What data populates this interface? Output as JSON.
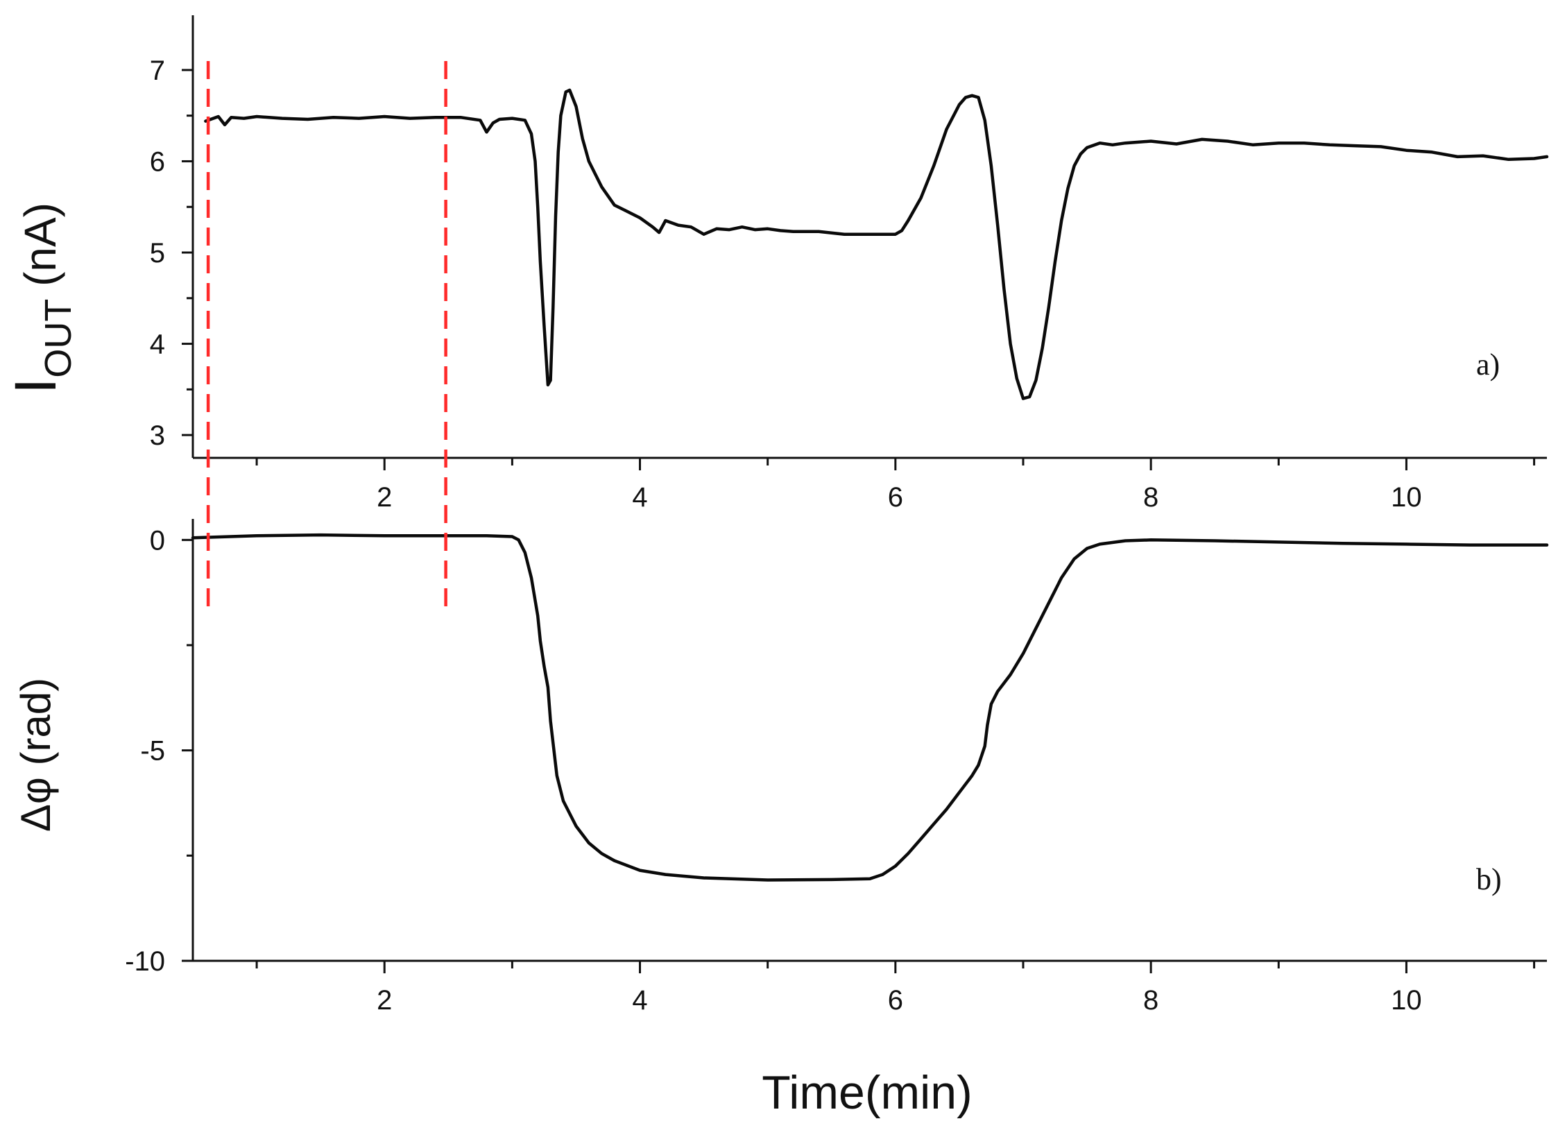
{
  "chart_data": [
    {
      "panel": "a)",
      "type": "line",
      "ylabel_main": "I",
      "ylabel_sub": "OUT",
      "ylabel_unit": " (nA)",
      "xlim": [
        0.5,
        11.1
      ],
      "ylim": [
        2.75,
        7.6
      ],
      "xticks": [
        2,
        4,
        6,
        8,
        10
      ],
      "xticks_minor": [
        1,
        3,
        5,
        7,
        9,
        11
      ],
      "yticks": [
        3,
        4,
        5,
        6,
        7
      ],
      "grid": false,
      "series": [
        {
          "color": "#000000",
          "x": [
            0.6,
            0.7,
            0.75,
            0.8,
            0.9,
            1.0,
            1.2,
            1.4,
            1.6,
            1.8,
            2.0,
            2.2,
            2.4,
            2.6,
            2.75,
            2.8,
            2.85,
            2.9,
            3.0,
            3.1,
            3.15,
            3.18,
            3.2,
            3.22,
            3.25,
            3.28,
            3.3,
            3.32,
            3.34,
            3.36,
            3.38,
            3.42,
            3.45,
            3.5,
            3.55,
            3.6,
            3.7,
            3.8,
            3.9,
            4.0,
            4.1,
            4.15,
            4.2,
            4.3,
            4.4,
            4.5,
            4.6,
            4.7,
            4.8,
            4.9,
            5.0,
            5.1,
            5.2,
            5.4,
            5.6,
            5.8,
            6.0,
            6.05,
            6.1,
            6.2,
            6.3,
            6.4,
            6.5,
            6.55,
            6.6,
            6.65,
            6.7,
            6.75,
            6.8,
            6.85,
            6.9,
            6.95,
            7.0,
            7.05,
            7.1,
            7.15,
            7.2,
            7.25,
            7.3,
            7.35,
            7.4,
            7.45,
            7.5,
            7.6,
            7.7,
            7.8,
            8.0,
            8.2,
            8.4,
            8.6,
            8.8,
            9.0,
            9.2,
            9.4,
            9.6,
            9.8,
            10.0,
            10.2,
            10.4,
            10.6,
            10.8,
            11.0,
            11.1
          ],
          "y": [
            6.44,
            6.49,
            6.4,
            6.48,
            6.47,
            6.49,
            6.47,
            6.46,
            6.48,
            6.47,
            6.49,
            6.47,
            6.48,
            6.48,
            6.45,
            6.32,
            6.42,
            6.46,
            6.47,
            6.45,
            6.3,
            6.0,
            5.5,
            4.9,
            4.2,
            3.55,
            3.6,
            4.4,
            5.4,
            6.1,
            6.5,
            6.76,
            6.78,
            6.6,
            6.25,
            6.0,
            5.72,
            5.52,
            5.45,
            5.38,
            5.28,
            5.22,
            5.35,
            5.3,
            5.28,
            5.2,
            5.26,
            5.25,
            5.28,
            5.25,
            5.26,
            5.24,
            5.23,
            5.23,
            5.2,
            5.2,
            5.2,
            5.24,
            5.35,
            5.6,
            5.95,
            6.35,
            6.62,
            6.7,
            6.72,
            6.7,
            6.45,
            5.95,
            5.3,
            4.6,
            4.0,
            3.62,
            3.4,
            3.42,
            3.6,
            3.95,
            4.4,
            4.9,
            5.35,
            5.7,
            5.95,
            6.08,
            6.15,
            6.2,
            6.18,
            6.2,
            6.22,
            6.19,
            6.24,
            6.22,
            6.18,
            6.2,
            6.2,
            6.18,
            6.17,
            6.16,
            6.12,
            6.1,
            6.05,
            6.06,
            6.02,
            6.03,
            6.05
          ]
        }
      ]
    },
    {
      "panel": "b)",
      "type": "line",
      "ylabel": "Δφ (rad)",
      "xlabel": "Time(min)",
      "xlim": [
        0.5,
        11.1
      ],
      "ylim": [
        -10,
        0.5
      ],
      "xticks": [
        2,
        4,
        6,
        8,
        10
      ],
      "xticks_minor": [
        1,
        3,
        5,
        7,
        9,
        11
      ],
      "yticks": [
        0,
        -5,
        -10
      ],
      "grid": false,
      "series": [
        {
          "color": "#000000",
          "x": [
            0.5,
            1.0,
            1.5,
            2.0,
            2.5,
            2.8,
            3.0,
            3.05,
            3.1,
            3.15,
            3.2,
            3.22,
            3.25,
            3.28,
            3.3,
            3.35,
            3.4,
            3.5,
            3.6,
            3.7,
            3.8,
            4.0,
            4.2,
            4.5,
            5.0,
            5.5,
            5.8,
            5.9,
            6.0,
            6.1,
            6.2,
            6.3,
            6.4,
            6.5,
            6.6,
            6.65,
            6.7,
            6.72,
            6.75,
            6.8,
            6.9,
            7.0,
            7.1,
            7.2,
            7.3,
            7.4,
            7.5,
            7.6,
            7.8,
            8.0,
            8.5,
            9.0,
            9.5,
            10.0,
            10.5,
            11.1
          ],
          "y": [
            0.05,
            0.1,
            0.12,
            0.1,
            0.1,
            0.1,
            0.08,
            0.0,
            -0.3,
            -0.9,
            -1.8,
            -2.4,
            -3.0,
            -3.5,
            -4.3,
            -5.6,
            -6.2,
            -6.8,
            -7.2,
            -7.45,
            -7.62,
            -7.85,
            -7.95,
            -8.03,
            -8.08,
            -8.07,
            -8.05,
            -7.95,
            -7.75,
            -7.45,
            -7.1,
            -6.75,
            -6.4,
            -6.0,
            -5.6,
            -5.35,
            -4.9,
            -4.4,
            -3.9,
            -3.6,
            -3.2,
            -2.7,
            -2.1,
            -1.5,
            -0.9,
            -0.45,
            -0.2,
            -0.1,
            -0.02,
            0.0,
            -0.02,
            -0.05,
            -0.08,
            -0.1,
            -0.12,
            -0.12
          ]
        }
      ]
    }
  ],
  "marker_lines": {
    "color": "#ff2a2a",
    "x": [
      0.62,
      2.48
    ]
  }
}
